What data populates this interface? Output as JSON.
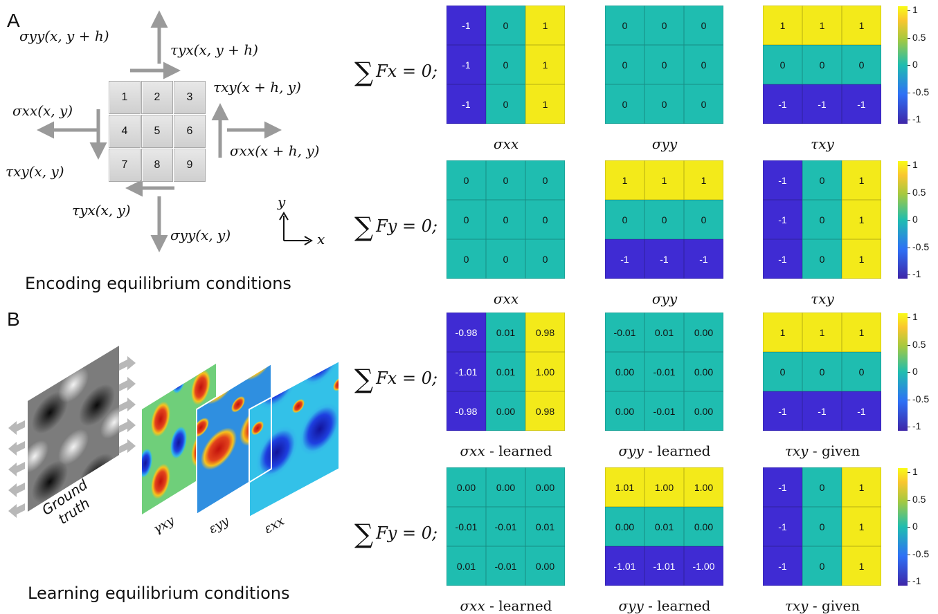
{
  "panel_a": {
    "letter": "A",
    "caption": "Encoding equilibrium conditions",
    "grid_numbers": [
      "1",
      "2",
      "3",
      "4",
      "5",
      "6",
      "7",
      "8",
      "9"
    ],
    "labels": {
      "syy_top": "σyy(x, y + h)",
      "tyx_top": "τyx(x, y + h)",
      "txy_right": "τxy(x + h, y)",
      "sxx_left": "σxx(x, y)",
      "sxx_right": "σxx(x + h, y)",
      "txy_left": "τxy(x, y)",
      "tyx_bottom": "τyx(x, y)",
      "syy_bottom": "σyy(x, y)"
    },
    "axis_x": "x",
    "axis_y": "y"
  },
  "panel_b": {
    "letter": "B",
    "caption": "Learning equilibrium conditions",
    "ground_truth": [
      "Ground",
      "truth"
    ],
    "fields": [
      "γxy",
      "εyy",
      "εxx"
    ]
  },
  "colors": {
    "neg": "#3f2bd3",
    "zero": "#1fbdb0",
    "pos": "#f3ea1a"
  },
  "colorbar_ticks": [
    "1",
    "0.5",
    "0",
    "-0.5",
    "-1"
  ],
  "rows": [
    {
      "condition": "Fx = 0;",
      "matrices": [
        {
          "label_sym": "σxx",
          "label_suffix": "",
          "cells": [
            "-1",
            "0",
            "1",
            "-1",
            "0",
            "1",
            "-1",
            "0",
            "1"
          ],
          "colors": [
            "neg",
            "zero",
            "pos",
            "neg",
            "zero",
            "pos",
            "neg",
            "zero",
            "pos"
          ]
        },
        {
          "label_sym": "σyy",
          "label_suffix": "",
          "cells": [
            "0",
            "0",
            "0",
            "0",
            "0",
            "0",
            "0",
            "0",
            "0"
          ],
          "colors": [
            "zero",
            "zero",
            "zero",
            "zero",
            "zero",
            "zero",
            "zero",
            "zero",
            "zero"
          ]
        },
        {
          "label_sym": "τxy",
          "label_suffix": "",
          "cells": [
            "1",
            "1",
            "1",
            "0",
            "0",
            "0",
            "-1",
            "-1",
            "-1"
          ],
          "colors": [
            "pos",
            "pos",
            "pos",
            "zero",
            "zero",
            "zero",
            "neg",
            "neg",
            "neg"
          ]
        }
      ]
    },
    {
      "condition": "Fy = 0;",
      "matrices": [
        {
          "label_sym": "σxx",
          "label_suffix": "",
          "cells": [
            "0",
            "0",
            "0",
            "0",
            "0",
            "0",
            "0",
            "0",
            "0"
          ],
          "colors": [
            "zero",
            "zero",
            "zero",
            "zero",
            "zero",
            "zero",
            "zero",
            "zero",
            "zero"
          ]
        },
        {
          "label_sym": "σyy",
          "label_suffix": "",
          "cells": [
            "1",
            "1",
            "1",
            "0",
            "0",
            "0",
            "-1",
            "-1",
            "-1"
          ],
          "colors": [
            "pos",
            "pos",
            "pos",
            "zero",
            "zero",
            "zero",
            "neg",
            "neg",
            "neg"
          ]
        },
        {
          "label_sym": "τxy",
          "label_suffix": "",
          "cells": [
            "-1",
            "0",
            "1",
            "-1",
            "0",
            "1",
            "-1",
            "0",
            "1"
          ],
          "colors": [
            "neg",
            "zero",
            "pos",
            "neg",
            "zero",
            "pos",
            "neg",
            "zero",
            "pos"
          ]
        }
      ]
    },
    {
      "condition": "Fx = 0;",
      "matrices": [
        {
          "label_sym": "σxx",
          "label_suffix": " - learned",
          "cells": [
            "-0.98",
            "0.01",
            "0.98",
            "-1.01",
            "0.01",
            "1.00",
            "-0.98",
            "0.00",
            "0.98"
          ],
          "colors": [
            "neg",
            "zero",
            "pos",
            "neg",
            "zero",
            "pos",
            "neg",
            "zero",
            "pos"
          ]
        },
        {
          "label_sym": "σyy",
          "label_suffix": " - learned",
          "cells": [
            "-0.01",
            "0.01",
            "0.00",
            "0.00",
            "-0.01",
            "0.00",
            "0.00",
            "-0.01",
            "0.00"
          ],
          "colors": [
            "zero",
            "zero",
            "zero",
            "zero",
            "zero",
            "zero",
            "zero",
            "zero",
            "zero"
          ]
        },
        {
          "label_sym": "τxy",
          "label_suffix": " - given",
          "cells": [
            "1",
            "1",
            "1",
            "0",
            "0",
            "0",
            "-1",
            "-1",
            "-1"
          ],
          "colors": [
            "pos",
            "pos",
            "pos",
            "zero",
            "zero",
            "zero",
            "neg",
            "neg",
            "neg"
          ]
        }
      ]
    },
    {
      "condition": "Fy = 0;",
      "matrices": [
        {
          "label_sym": "σxx",
          "label_suffix": " - learned",
          "cells": [
            "0.00",
            "0.00",
            "0.00",
            "-0.01",
            "-0.01",
            "0.01",
            "0.01",
            "-0.01",
            "0.00"
          ],
          "colors": [
            "zero",
            "zero",
            "zero",
            "zero",
            "zero",
            "zero",
            "zero",
            "zero",
            "zero"
          ]
        },
        {
          "label_sym": "σyy",
          "label_suffix": " - learned",
          "cells": [
            "1.01",
            "1.00",
            "1.00",
            "0.00",
            "0.01",
            "0.00",
            "-1.01",
            "-1.01",
            "-1.00"
          ],
          "colors": [
            "pos",
            "pos",
            "pos",
            "zero",
            "zero",
            "zero",
            "neg",
            "neg",
            "neg"
          ]
        },
        {
          "label_sym": "τxy",
          "label_suffix": " - given",
          "cells": [
            "-1",
            "0",
            "1",
            "-1",
            "0",
            "1",
            "-1",
            "0",
            "1"
          ],
          "colors": [
            "neg",
            "zero",
            "pos",
            "neg",
            "zero",
            "pos",
            "neg",
            "zero",
            "pos"
          ]
        }
      ]
    }
  ]
}
